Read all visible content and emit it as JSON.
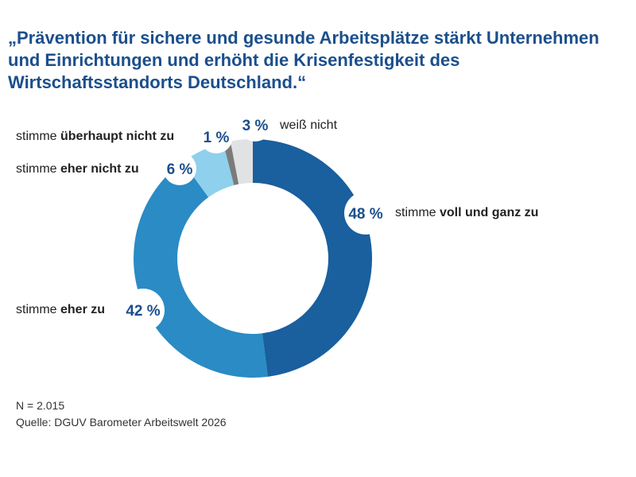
{
  "chart_data": {
    "type": "pie",
    "title": "„Prävention für sichere und gesunde Arbeitsplätze stärkt Unternehmen und Einrichtungen und erhöht die Krisenfestigkeit des Wirtschaftsstandorts Deutschland.“",
    "slices": [
      {
        "pre": "stimme ",
        "bold": "voll und ganz zu",
        "value": 48,
        "label": "48 %",
        "color": "#1a5f9e"
      },
      {
        "pre": "stimme ",
        "bold": "eher zu",
        "value": 42,
        "label": "42 %",
        "color": "#2a8bc5"
      },
      {
        "pre": "stimme ",
        "bold": "eher nicht zu",
        "value": 6,
        "label": "6 %",
        "color": "#8fd0ec"
      },
      {
        "pre": "stimme ",
        "bold": "überhaupt nicht zu",
        "value": 1,
        "label": "1 %",
        "color": "#7b7b7b"
      },
      {
        "pre": "weiß nicht",
        "bold": "",
        "value": 3,
        "label": "3 %",
        "color": "#e1e2e3"
      }
    ],
    "donut": true
  },
  "footer": {
    "n": "N = 2.015",
    "source": "Quelle: DGUV Barometer Arbeitswelt 2026"
  }
}
